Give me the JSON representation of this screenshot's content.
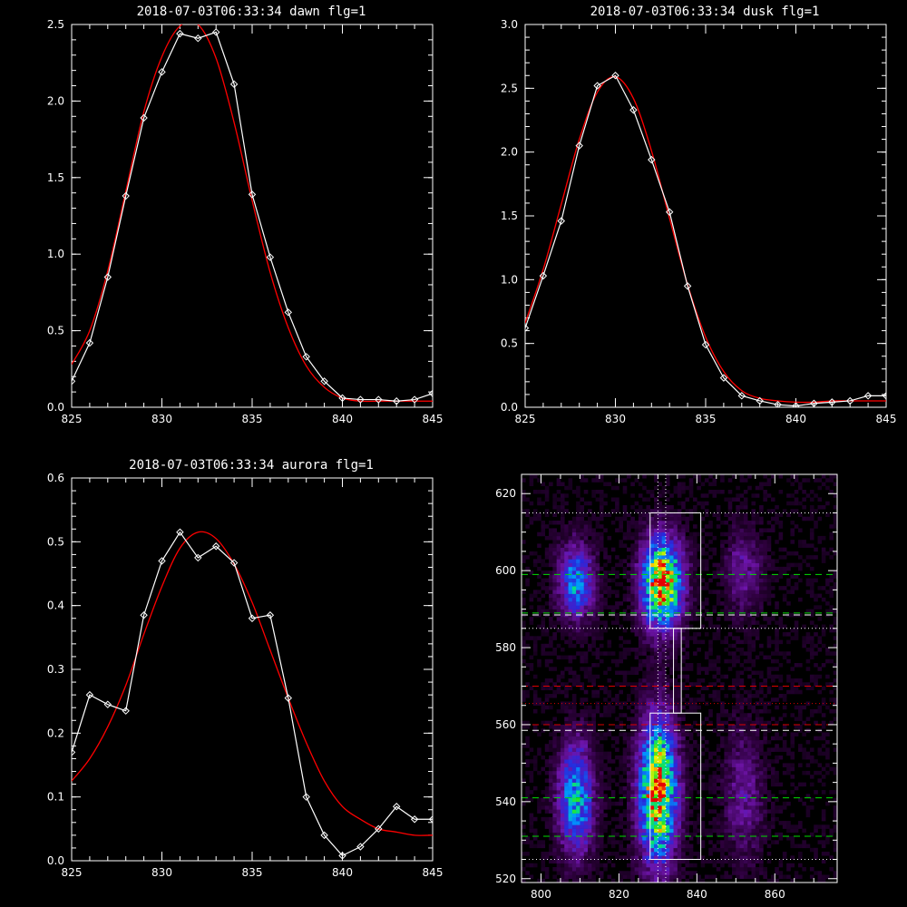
{
  "chart_data": [
    {
      "type": "line",
      "title": "2018-07-03T06:33:34 dawn flg=1",
      "xlim": [
        825,
        845
      ],
      "ylim": [
        0,
        2.5
      ],
      "xticks": [
        "825",
        "830",
        "835",
        "840",
        "845"
      ],
      "yticks": [
        "0.0",
        "0.5",
        "1.0",
        "1.5",
        "2.0",
        "2.5"
      ],
      "series": [
        {
          "kind": "data",
          "color": "#ffffff",
          "x": [
            825,
            826,
            827,
            828,
            829,
            830,
            831,
            832,
            833,
            834,
            835,
            836,
            837,
            838,
            839,
            840,
            841,
            842,
            843,
            844,
            845
          ],
          "y": [
            0.17,
            0.42,
            0.85,
            1.38,
            1.89,
            2.19,
            2.44,
            2.41,
            2.45,
            2.11,
            1.39,
            0.98,
            0.62,
            0.33,
            0.17,
            0.06,
            0.05,
            0.05,
            0.04,
            0.05,
            0.09
          ]
        },
        {
          "kind": "fit",
          "color": "#ff0000",
          "x": [
            825,
            826,
            827,
            828,
            829,
            830,
            831,
            832,
            833,
            834,
            835,
            836,
            837,
            838,
            839,
            840,
            841,
            842,
            843,
            844,
            845
          ],
          "y": [
            0.28,
            0.5,
            0.89,
            1.41,
            1.93,
            2.29,
            2.49,
            2.5,
            2.28,
            1.86,
            1.35,
            0.88,
            0.52,
            0.27,
            0.13,
            0.06,
            0.04,
            0.04,
            0.04,
            0.04,
            0.04
          ]
        }
      ]
    },
    {
      "type": "line",
      "title": "2018-07-03T06:33:34 dusk flg=1",
      "xlim": [
        825,
        845
      ],
      "ylim": [
        0,
        3.0
      ],
      "xticks": [
        "825",
        "830",
        "835",
        "840",
        "845"
      ],
      "yticks": [
        "0.0",
        "0.5",
        "1.0",
        "1.5",
        "2.0",
        "2.5",
        "3.0"
      ],
      "series": [
        {
          "kind": "data",
          "color": "#ffffff",
          "x": [
            825,
            826,
            827,
            828,
            829,
            830,
            831,
            832,
            833,
            834,
            835,
            836,
            837,
            838,
            839,
            840,
            841,
            842,
            843,
            844,
            845
          ],
          "y": [
            0.62,
            1.03,
            1.46,
            2.05,
            2.52,
            2.6,
            2.33,
            1.94,
            1.53,
            0.95,
            0.49,
            0.23,
            0.09,
            0.05,
            0.02,
            0.01,
            0.03,
            0.04,
            0.05,
            0.09,
            0.09
          ]
        },
        {
          "kind": "fit",
          "color": "#ff0000",
          "x": [
            825,
            826,
            827,
            828,
            829,
            830,
            831,
            832,
            833,
            834,
            835,
            836,
            837,
            838,
            839,
            840,
            841,
            842,
            843,
            844,
            845
          ],
          "y": [
            0.66,
            1.08,
            1.59,
            2.1,
            2.47,
            2.59,
            2.42,
            2.01,
            1.48,
            0.96,
            0.55,
            0.28,
            0.13,
            0.07,
            0.05,
            0.04,
            0.04,
            0.05,
            0.05,
            0.05,
            0.05
          ]
        }
      ]
    },
    {
      "type": "line",
      "title": "2018-07-03T06:33:34 aurora flg=1",
      "xlim": [
        825,
        845
      ],
      "ylim": [
        0,
        0.6
      ],
      "xticks": [
        "825",
        "830",
        "835",
        "840",
        "845"
      ],
      "yticks": [
        "0.0",
        "0.1",
        "0.2",
        "0.3",
        "0.4",
        "0.5",
        "0.6"
      ],
      "series": [
        {
          "kind": "data",
          "color": "#ffffff",
          "x": [
            825,
            826,
            827,
            828,
            829,
            830,
            831,
            832,
            833,
            834,
            835,
            836,
            837,
            838,
            839,
            840,
            841,
            842,
            843,
            844,
            845
          ],
          "y": [
            0.17,
            0.26,
            0.245,
            0.235,
            0.385,
            0.47,
            0.515,
            0.475,
            0.493,
            0.467,
            0.38,
            0.385,
            0.255,
            0.1,
            0.04,
            0.008,
            0.022,
            0.05,
            0.085,
            0.065,
            0.065
          ]
        },
        {
          "kind": "fit",
          "color": "#ff0000",
          "x": [
            825,
            826,
            827,
            828,
            829,
            830,
            831,
            832,
            833,
            834,
            835,
            836,
            837,
            838,
            839,
            840,
            841,
            842,
            843,
            844,
            845
          ],
          "y": [
            0.125,
            0.16,
            0.21,
            0.275,
            0.355,
            0.43,
            0.49,
            0.515,
            0.505,
            0.465,
            0.405,
            0.33,
            0.255,
            0.185,
            0.125,
            0.085,
            0.065,
            0.05,
            0.045,
            0.04,
            0.04
          ]
        }
      ]
    },
    {
      "type": "heatmap",
      "xlim": [
        795,
        876
      ],
      "ylim": [
        519,
        625
      ],
      "xticks": [
        "800",
        "820",
        "840",
        "860"
      ],
      "yticks": [
        "520",
        "540",
        "560",
        "580",
        "600",
        "620"
      ],
      "colormap": "rainbow",
      "blobs": [
        {
          "x": 809,
          "y": 597,
          "sx": 3.2,
          "sy": 7,
          "amp": 0.5
        },
        {
          "x": 809,
          "y": 541,
          "sx": 3.2,
          "sy": 10,
          "amp": 0.58
        },
        {
          "x": 831,
          "y": 597,
          "sx": 3.6,
          "sy": 8,
          "amp": 1.0
        },
        {
          "x": 830,
          "y": 543,
          "sx": 3.4,
          "sy": 13,
          "amp": 0.95
        },
        {
          "x": 852,
          "y": 600,
          "sx": 3.5,
          "sy": 8,
          "amp": 0.22
        },
        {
          "x": 852,
          "y": 542,
          "sx": 3.5,
          "sy": 12,
          "amp": 0.22
        }
      ],
      "boxes": [
        {
          "x0": 828,
          "x1": 841,
          "y0": 585,
          "y1": 615,
          "color": "#ffffff"
        },
        {
          "x0": 828,
          "x1": 841,
          "y0": 525,
          "y1": 563,
          "color": "#ffffff"
        },
        {
          "x0": 834,
          "x1": 836,
          "y0": 563,
          "y1": 585,
          "color": "#ffffff"
        }
      ],
      "vlines": [
        {
          "x": 830,
          "color": "#ffffff",
          "style": "dotted"
        },
        {
          "x": 832,
          "color": "#ffffff",
          "style": "dotted"
        }
      ],
      "hlines": [
        {
          "y": 615,
          "color": "#ffffff",
          "style": "dotted"
        },
        {
          "y": 599,
          "color": "#00dd00",
          "style": "dashed"
        },
        {
          "y": 589,
          "color": "#00dd00",
          "style": "dashed"
        },
        {
          "y": 588.5,
          "color": "#ffffff",
          "style": "dashed"
        },
        {
          "y": 585,
          "color": "#ffffff",
          "style": "dotted"
        },
        {
          "y": 570,
          "color": "#dd0000",
          "style": "dashed"
        },
        {
          "y": 565.5,
          "color": "#dd0000",
          "style": "dotted"
        },
        {
          "y": 560,
          "color": "#dd0000",
          "style": "dashed"
        },
        {
          "y": 558.5,
          "color": "#ffffff",
          "style": "dashed"
        },
        {
          "y": 541,
          "color": "#00dd00",
          "style": "dashed"
        },
        {
          "y": 531,
          "color": "#00dd00",
          "style": "dashed"
        },
        {
          "y": 525,
          "color": "#ffffff",
          "style": "dotted"
        }
      ]
    }
  ]
}
